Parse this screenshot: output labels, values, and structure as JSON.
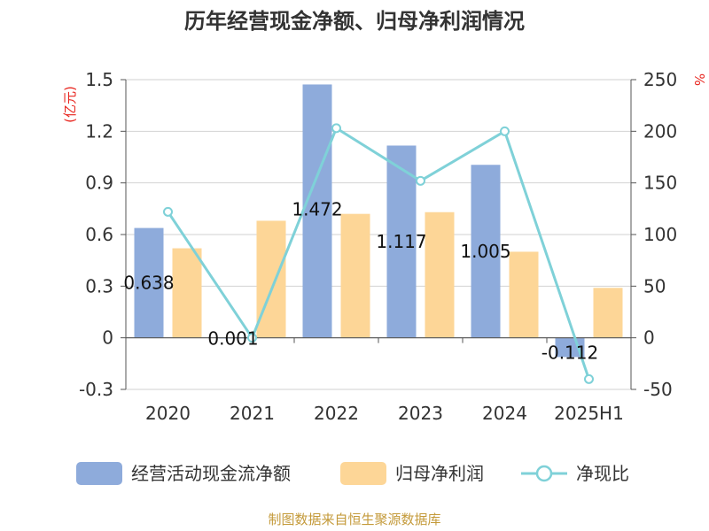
{
  "chart_data": {
    "type": "bar",
    "title": "历年经营现金净额、归母净利润情况",
    "categories": [
      "2020",
      "2021",
      "2022",
      "2023",
      "2024",
      "2025H1"
    ],
    "left_axis": {
      "unit": "(亿元)",
      "ylim": [
        -0.3,
        1.5
      ],
      "ticks": [
        "-0.3",
        "0",
        "0.3",
        "0.6",
        "0.9",
        "1.2",
        "1.5"
      ]
    },
    "right_axis": {
      "unit": "%",
      "ylim": [
        -50,
        250
      ],
      "ticks": [
        "-50",
        "0",
        "50",
        "100",
        "150",
        "200",
        "250"
      ]
    },
    "series": [
      {
        "name": "经营活动现金流净额",
        "type": "bar",
        "axis": "left",
        "color": "#8eabdb",
        "values": [
          0.638,
          0.001,
          1.472,
          1.117,
          1.005,
          -0.112
        ],
        "labels": [
          "0.638",
          "0.001",
          "1.472",
          "1.117",
          "1.005",
          "-0.112"
        ]
      },
      {
        "name": "归母净利润",
        "type": "bar",
        "axis": "left",
        "color": "#fdd697",
        "values": [
          0.52,
          0.68,
          0.72,
          0.73,
          0.5,
          0.29
        ]
      },
      {
        "name": "净现比",
        "type": "line",
        "axis": "right",
        "color": "#7fd1d8",
        "values": [
          122,
          0,
          203,
          152,
          200,
          -40
        ]
      }
    ],
    "grid": true,
    "legend_position": "bottom"
  },
  "footer": {
    "source": "制图数据来自恒生聚源数据库"
  }
}
